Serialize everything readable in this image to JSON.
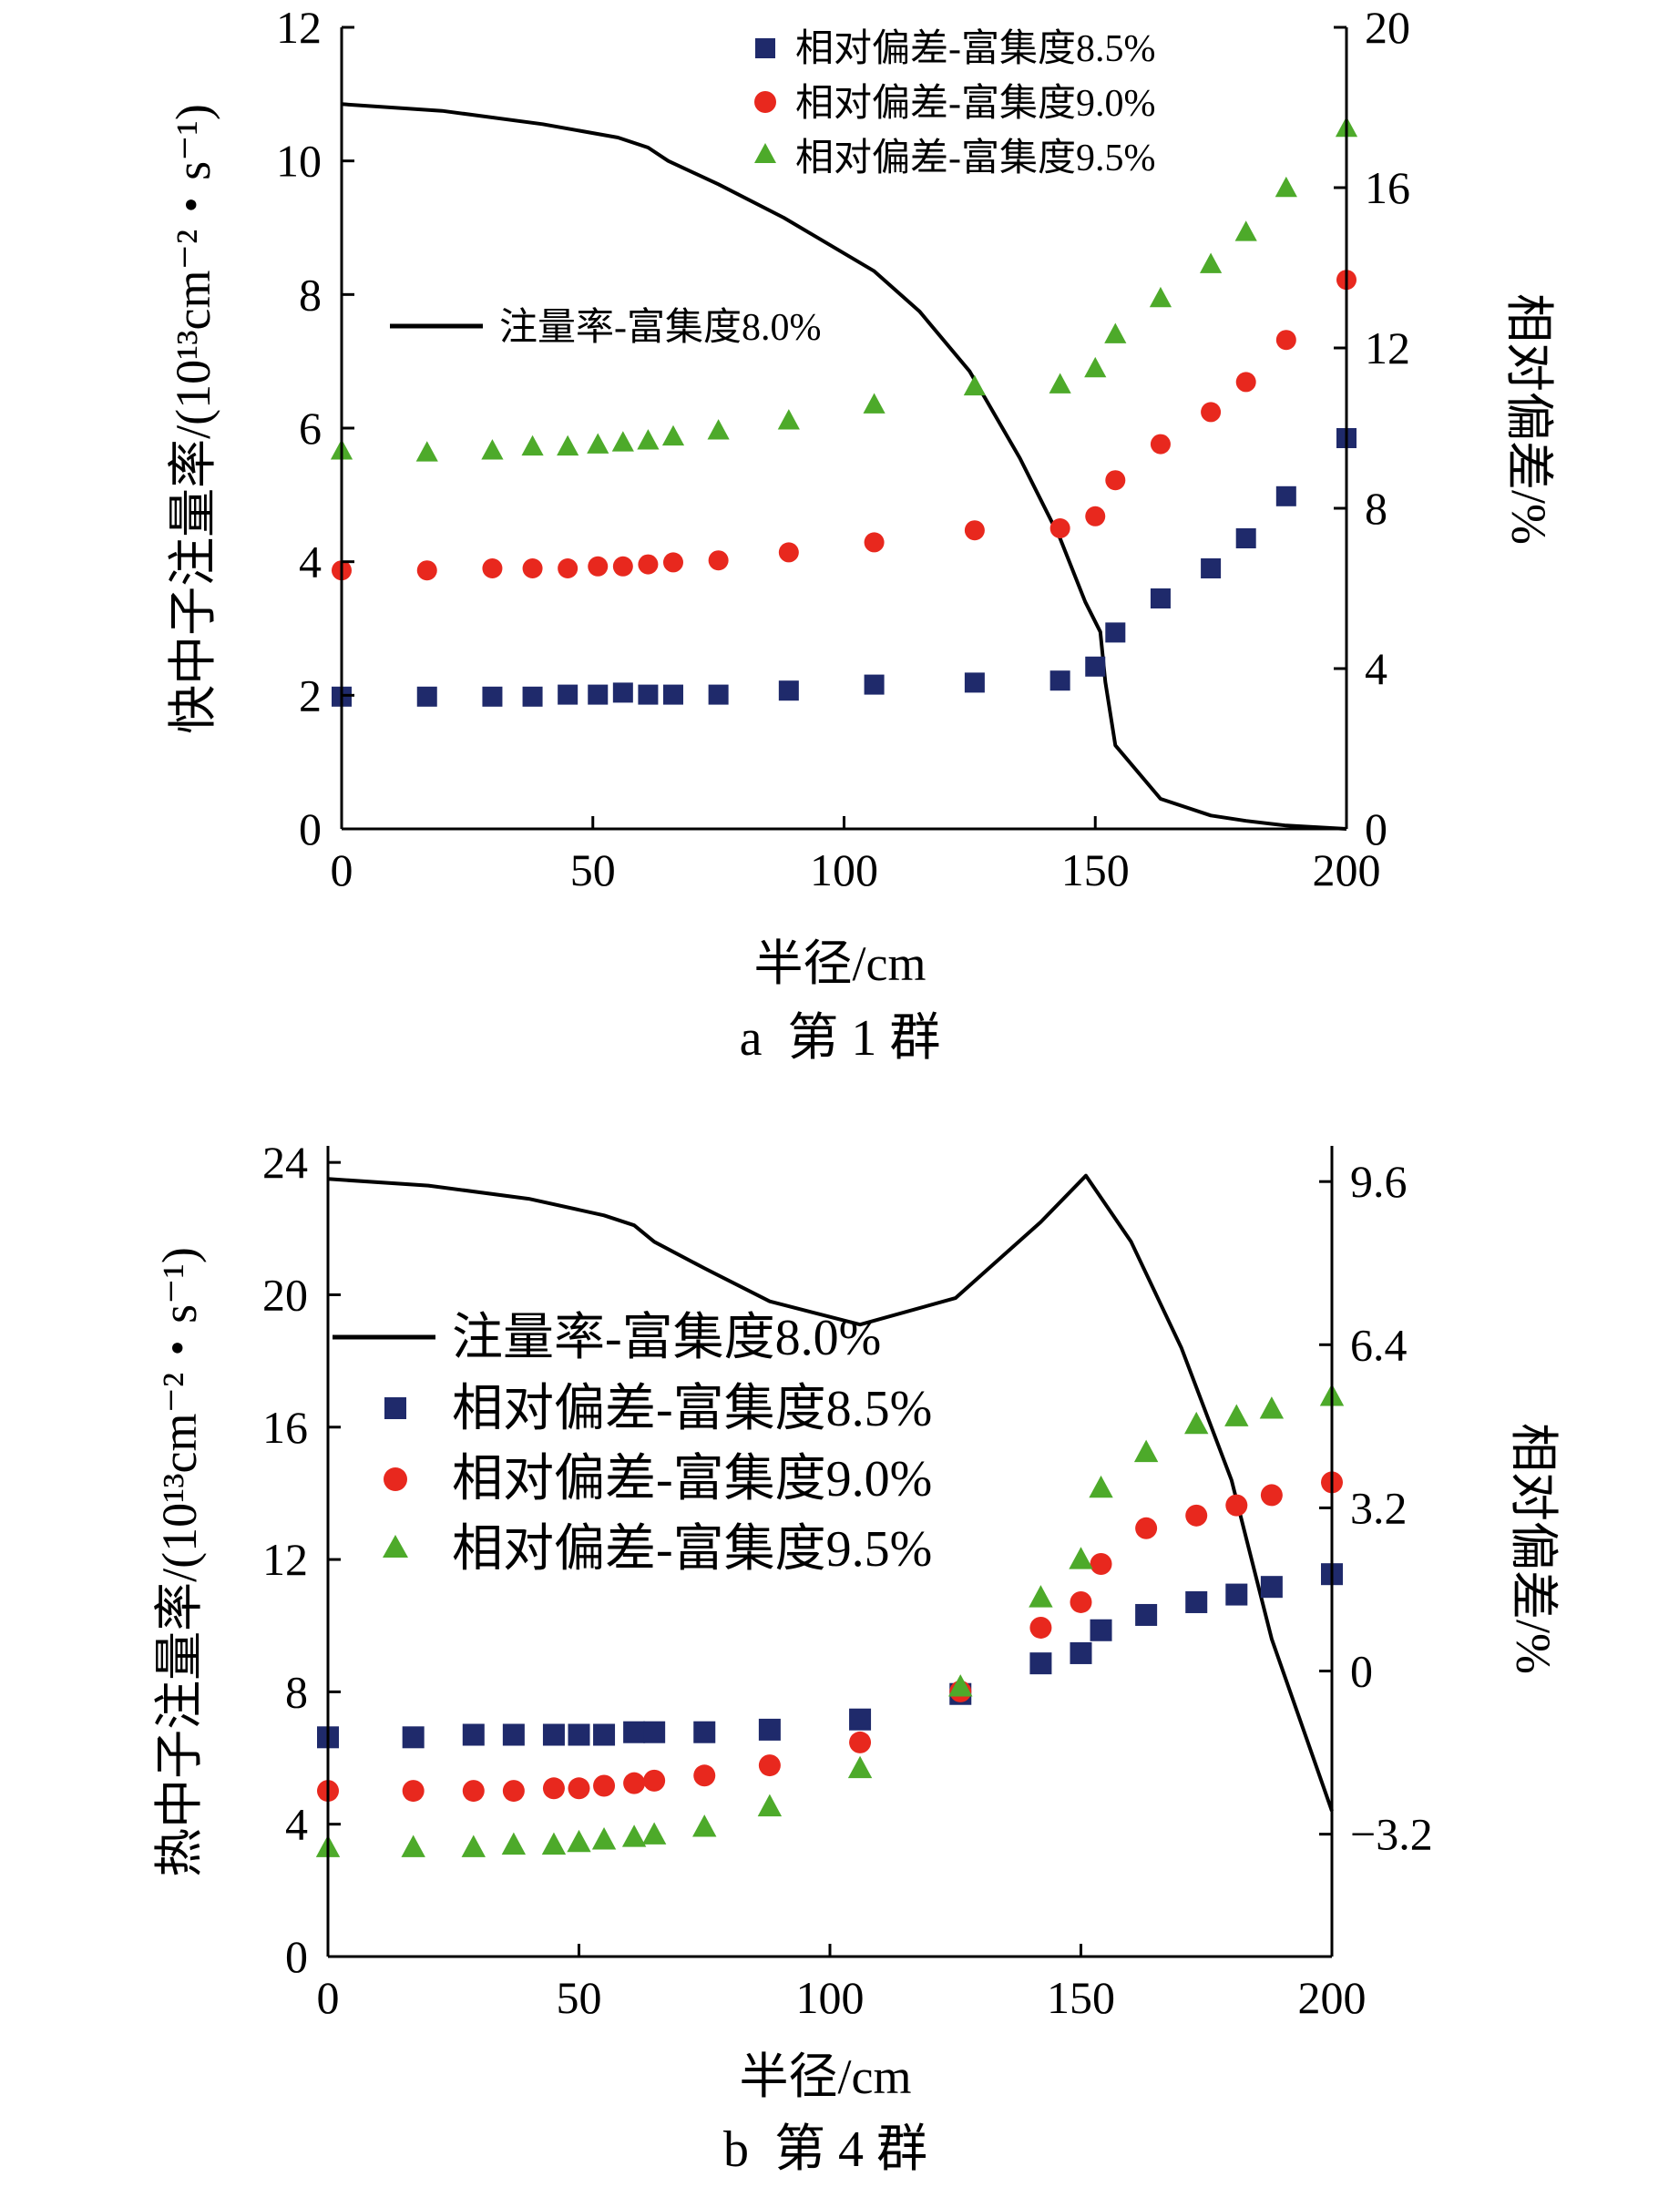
{
  "chart_data": [
    {
      "type": "line",
      "caption": "a  第 1 群",
      "xlabel": "半径/cm",
      "ylabel": "快中子注量率/(10¹³cm⁻²・s⁻¹)",
      "ylabel2": "相对偏差/%",
      "xlim": [
        0,
        200
      ],
      "ylim": [
        0,
        12
      ],
      "ylim2": [
        0,
        20
      ],
      "x_ticks": [
        0,
        50,
        100,
        150,
        200
      ],
      "y_ticks": [
        0,
        2,
        4,
        6,
        8,
        10,
        12
      ],
      "y2_ticks": [
        0,
        4,
        8,
        12,
        16,
        20
      ],
      "x_tick_labels": [
        "0",
        "50",
        "100",
        "150",
        "200"
      ],
      "y_tick_labels": [
        "0",
        "2",
        "4",
        "6",
        "8",
        "10",
        "12"
      ],
      "y2_tick_labels": [
        "0",
        "4",
        "8",
        "12",
        "16",
        "20"
      ],
      "grid": false,
      "legend": {
        "line": "注量率-富集度8.0%",
        "markers": [
          "相对偏差-富集度8.5%",
          "相对偏差-富集度9.0%",
          "相对偏差-富集度9.5%"
        ]
      },
      "series": [
        {
          "name": "注量率-富集度8.0%",
          "kind": "line",
          "axis": "left",
          "color": "#000000",
          "x": [
            0,
            20,
            40,
            55,
            61,
            65,
            75,
            88,
            106,
            115,
            125,
            135,
            143,
            148,
            151,
            152,
            154,
            163,
            173,
            180,
            188,
            200
          ],
          "y": [
            10.85,
            10.75,
            10.55,
            10.35,
            10.2,
            10.0,
            9.65,
            9.15,
            8.35,
            7.75,
            6.85,
            5.55,
            4.35,
            3.4,
            2.95,
            2.2,
            1.25,
            0.45,
            0.2,
            0.12,
            0.05,
            0.0
          ]
        },
        {
          "name": "相对偏差-富集度8.5%",
          "kind": "marker",
          "marker": "square",
          "axis": "right",
          "color": "#1f2a6b",
          "x": [
            0,
            17,
            30,
            38,
            45,
            51,
            56,
            61,
            66,
            75,
            89,
            106,
            126,
            143,
            150,
            154,
            163,
            173,
            180,
            188,
            200
          ],
          "y": [
            3.3,
            3.3,
            3.3,
            3.3,
            3.35,
            3.35,
            3.4,
            3.35,
            3.35,
            3.35,
            3.45,
            3.6,
            3.65,
            3.7,
            4.05,
            4.9,
            5.75,
            6.5,
            7.25,
            8.3,
            9.75
          ]
        },
        {
          "name": "相对偏差-富集度9.0%",
          "kind": "marker",
          "marker": "circle",
          "axis": "right",
          "color": "#e8281e",
          "x": [
            0,
            17,
            30,
            38,
            45,
            51,
            56,
            61,
            66,
            75,
            89,
            106,
            126,
            143,
            150,
            154,
            163,
            173,
            180,
            188,
            200
          ],
          "y": [
            6.45,
            6.45,
            6.5,
            6.5,
            6.5,
            6.55,
            6.55,
            6.6,
            6.65,
            6.7,
            6.9,
            7.15,
            7.45,
            7.5,
            7.8,
            8.7,
            9.6,
            10.4,
            11.15,
            12.2,
            13.7
          ]
        },
        {
          "name": "相对偏差-富集度9.5%",
          "kind": "marker",
          "marker": "triangle",
          "axis": "right",
          "color": "#4daa2a",
          "x": [
            0,
            17,
            30,
            38,
            45,
            51,
            56,
            61,
            66,
            75,
            89,
            106,
            126,
            143,
            150,
            154,
            163,
            173,
            180,
            188,
            200
          ],
          "y": [
            9.45,
            9.4,
            9.45,
            9.55,
            9.55,
            9.6,
            9.65,
            9.7,
            9.8,
            9.95,
            10.2,
            10.6,
            11.05,
            11.1,
            11.5,
            12.35,
            13.25,
            14.1,
            14.9,
            16.0,
            17.5
          ]
        }
      ]
    },
    {
      "type": "line",
      "caption": "b  第 4 群",
      "xlabel": "半径/cm",
      "ylabel": "热中子注量率/(10¹³cm⁻²・s⁻¹)",
      "ylabel2": "相对偏差/%",
      "xlim": [
        0,
        200
      ],
      "ylim": [
        0,
        24.5
      ],
      "ylim2": [
        -5.6,
        10.3
      ],
      "x_ticks": [
        0,
        50,
        100,
        150,
        200
      ],
      "y_ticks": [
        0,
        4,
        8,
        12,
        16,
        20,
        24
      ],
      "y2_ticks": [
        -3.2,
        0,
        3.2,
        6.4,
        9.6
      ],
      "x_tick_labels": [
        "0",
        "50",
        "100",
        "150",
        "200"
      ],
      "y_tick_labels": [
        "0",
        "4",
        "8",
        "12",
        "16",
        "20",
        "24"
      ],
      "y2_tick_labels": [
        "−3.2",
        "0",
        "3.2",
        "6.4",
        "9.6"
      ],
      "grid": false,
      "legend": {
        "line": "注量率-富集度8.0%",
        "markers": [
          "相对偏差-富集度8.5%",
          "相对偏差-富集度9.0%",
          "相对偏差-富集度9.5%"
        ]
      },
      "series": [
        {
          "name": "注量率-富集度8.0%",
          "kind": "line",
          "axis": "left",
          "color": "#000000",
          "x": [
            0,
            20,
            40,
            55,
            61,
            65,
            75,
            88,
            106,
            125,
            142,
            151,
            160,
            170,
            180,
            188,
            200
          ],
          "y": [
            23.5,
            23.3,
            22.9,
            22.4,
            22.1,
            21.6,
            20.8,
            19.8,
            19.1,
            19.9,
            22.2,
            23.6,
            21.6,
            18.4,
            14.4,
            9.6,
            4.4
          ]
        },
        {
          "name": "相对偏差-富集度8.5%",
          "kind": "marker",
          "marker": "square",
          "axis": "right",
          "color": "#1f2a6b",
          "x": [
            0,
            17,
            29,
            37,
            45,
            50,
            55,
            61,
            65,
            75,
            88,
            106,
            126,
            142,
            150,
            154,
            163,
            173,
            181,
            188,
            200
          ],
          "y": [
            -1.3,
            -1.3,
            -1.25,
            -1.25,
            -1.25,
            -1.25,
            -1.25,
            -1.2,
            -1.2,
            -1.2,
            -1.15,
            -0.95,
            -0.45,
            0.15,
            0.35,
            0.8,
            1.1,
            1.35,
            1.5,
            1.65,
            1.9
          ]
        },
        {
          "name": "相对偏差-富集度9.0%",
          "kind": "marker",
          "marker": "circle",
          "axis": "right",
          "color": "#e8281e",
          "x": [
            0,
            17,
            29,
            37,
            45,
            50,
            55,
            61,
            65,
            75,
            88,
            106,
            126,
            142,
            150,
            154,
            163,
            173,
            181,
            188,
            200
          ],
          "y": [
            -2.35,
            -2.35,
            -2.35,
            -2.35,
            -2.3,
            -2.3,
            -2.25,
            -2.2,
            -2.15,
            -2.05,
            -1.85,
            -1.4,
            -0.4,
            0.85,
            1.35,
            2.1,
            2.8,
            3.05,
            3.25,
            3.45,
            3.7
          ]
        },
        {
          "name": "相对偏差-富集度9.5%",
          "kind": "marker",
          "marker": "triangle",
          "axis": "right",
          "color": "#4daa2a",
          "x": [
            0,
            17,
            29,
            37,
            45,
            50,
            55,
            61,
            65,
            75,
            88,
            106,
            126,
            142,
            150,
            154,
            163,
            173,
            181,
            188,
            200
          ],
          "y": [
            -3.45,
            -3.45,
            -3.45,
            -3.4,
            -3.4,
            -3.35,
            -3.3,
            -3.25,
            -3.2,
            -3.05,
            -2.65,
            -1.9,
            -0.3,
            1.45,
            2.2,
            3.6,
            4.3,
            4.85,
            5.0,
            5.15,
            5.4
          ]
        }
      ]
    }
  ]
}
